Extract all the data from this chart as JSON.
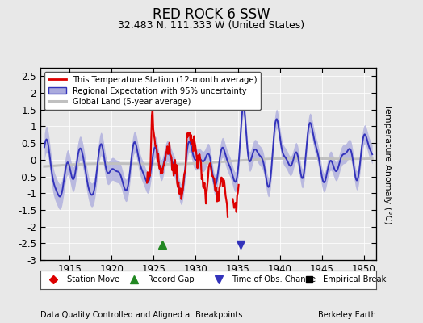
{
  "title": "RED ROCK 6 SSW",
  "subtitle": "32.483 N, 111.333 W (United States)",
  "ylabel": "Temperature Anomaly (°C)",
  "footer_left": "Data Quality Controlled and Aligned at Breakpoints",
  "footer_right": "Berkeley Earth",
  "xlim": [
    1911.5,
    1951.5
  ],
  "ylim": [
    -3.0,
    2.75
  ],
  "yticks": [
    -3,
    -2.5,
    -2,
    -1.5,
    -1,
    -0.5,
    0,
    0.5,
    1,
    1.5,
    2,
    2.5
  ],
  "xticks": [
    1915,
    1920,
    1925,
    1930,
    1935,
    1940,
    1945,
    1950
  ],
  "background_color": "#e8e8e8",
  "plot_bg_color": "#e8e8e8",
  "regional_color": "#3333bb",
  "regional_uncertainty_color": "#aaaadd",
  "station_color": "#dd0000",
  "global_color": "#c0c0c0",
  "record_gap_x": 1926.0,
  "record_gap_y": -2.55,
  "obs_change_x": 1935.3,
  "obs_change_y": -2.55
}
